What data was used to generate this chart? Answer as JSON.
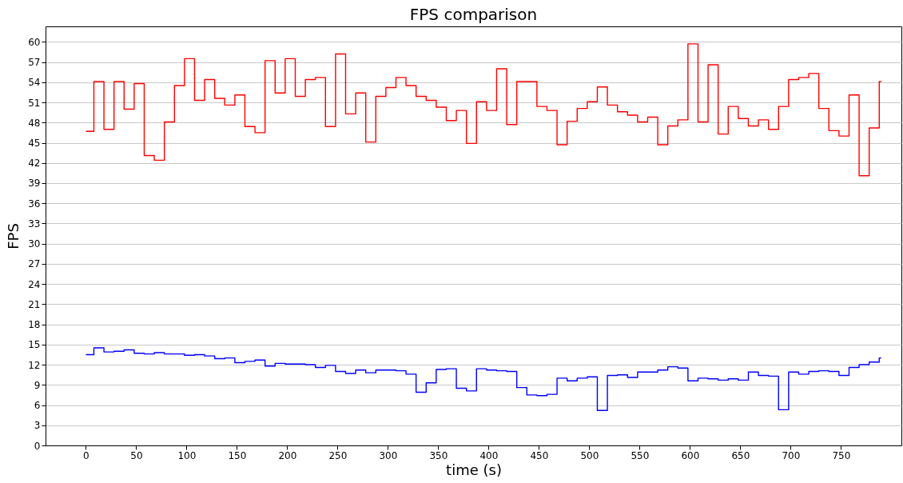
{
  "chart_data": {
    "type": "step",
    "title": "FPS comparison",
    "xlabel": "time (s)",
    "ylabel": "FPS",
    "x": [
      0,
      8,
      18,
      28,
      38,
      48,
      58,
      68,
      78,
      88,
      98,
      108,
      118,
      128,
      138,
      148,
      158,
      168,
      178,
      188,
      198,
      208,
      218,
      228,
      238,
      248,
      258,
      268,
      278,
      288,
      298,
      308,
      318,
      328,
      338,
      348,
      358,
      368,
      378,
      388,
      398,
      408,
      418,
      428,
      438,
      448,
      458,
      468,
      478,
      488,
      498,
      508,
      518,
      528,
      538,
      548,
      558,
      568,
      578,
      588,
      598,
      608,
      618,
      628,
      638,
      648,
      658,
      668,
      678,
      688,
      698,
      708,
      718,
      728,
      738,
      748,
      758,
      768,
      778,
      788,
      790
    ],
    "series": [
      {
        "color": "#0000ff",
        "values": [
          13.5,
          14.5,
          13.9,
          14.0,
          14.2,
          13.7,
          13.6,
          13.8,
          13.6,
          13.6,
          13.4,
          13.5,
          13.3,
          12.9,
          13.0,
          12.3,
          12.5,
          12.7,
          11.8,
          12.2,
          12.1,
          12.1,
          12.0,
          11.6,
          11.9,
          11.0,
          10.7,
          11.2,
          10.8,
          11.2,
          11.2,
          11.1,
          10.6,
          7.9,
          9.3,
          11.3,
          11.4,
          8.5,
          8.1,
          11.4,
          11.2,
          11.1,
          11.0,
          8.6,
          7.5,
          7.4,
          7.6,
          10.0,
          9.6,
          10.0,
          10.2,
          5.2,
          10.4,
          10.5,
          10.1,
          10.9,
          10.9,
          11.2,
          11.7,
          11.5,
          9.6,
          10.0,
          9.9,
          9.7,
          9.9,
          9.7,
          10.9,
          10.4,
          10.3,
          5.3,
          10.9,
          10.6,
          11.0,
          11.1,
          11.0,
          10.4,
          11.6,
          12.0,
          12.4,
          13.0,
          13.0
        ]
      },
      {
        "color": "#ff0000",
        "values": [
          46.7,
          54.1,
          47.0,
          54.1,
          50.0,
          53.8,
          43.1,
          42.4,
          48.1,
          53.5,
          57.5,
          51.3,
          54.4,
          51.6,
          50.6,
          52.1,
          47.4,
          46.5,
          57.2,
          52.4,
          57.5,
          51.9,
          54.4,
          54.7,
          47.4,
          58.2,
          49.3,
          52.4,
          45.1,
          51.9,
          53.2,
          54.7,
          53.5,
          51.9,
          51.3,
          50.3,
          48.3,
          49.8,
          44.9,
          51.1,
          49.8,
          56.0,
          47.7,
          54.1,
          54.1,
          50.4,
          49.8,
          44.7,
          48.2,
          50.1,
          51.1,
          53.3,
          50.6,
          49.6,
          49.1,
          48.1,
          48.8,
          44.7,
          47.5,
          48.4,
          59.7,
          48.1,
          56.6,
          46.3,
          50.4,
          48.6,
          47.5,
          48.4,
          47.0,
          50.4,
          54.4,
          54.7,
          55.3,
          50.1,
          46.8,
          46.0,
          52.1,
          40.1,
          47.2,
          54.1,
          54.1
        ]
      }
    ],
    "xlim": [
      -40,
      810
    ],
    "ylim": [
      0,
      62.3
    ],
    "xticks": [
      0,
      50,
      100,
      150,
      200,
      250,
      300,
      350,
      400,
      450,
      500,
      550,
      600,
      650,
      700,
      750
    ],
    "yticks": [
      0,
      3,
      6,
      9,
      12,
      15,
      18,
      21,
      24,
      27,
      30,
      33,
      36,
      39,
      42,
      45,
      48,
      51,
      54,
      57,
      60
    ],
    "grid": "y"
  }
}
